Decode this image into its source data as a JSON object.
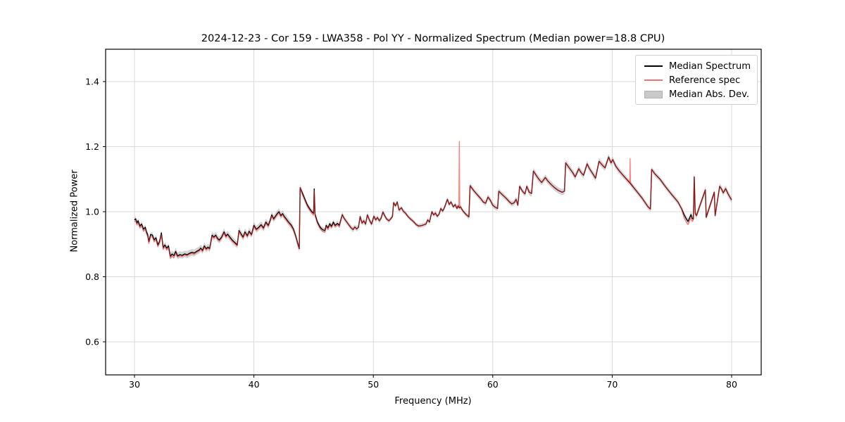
{
  "chart_data": {
    "type": "line",
    "title": "2024-12-23 - Cor 159 - LWA358 - Pol YY - Normalized Spectrum (Median power=18.8 CPU)",
    "xlabel": "Frequency (MHz)",
    "ylabel": "Normalized Power",
    "xlim": [
      27.6,
      82.5
    ],
    "ylim": [
      0.5,
      1.5
    ],
    "x_ticks": [
      30,
      40,
      50,
      60,
      70,
      80
    ],
    "x_tick_labels": [
      "30",
      "40",
      "50",
      "60",
      "70",
      "80"
    ],
    "y_ticks": [
      0.6,
      0.8,
      1.0,
      1.2,
      1.4
    ],
    "y_tick_labels": [
      "0.6",
      "0.8",
      "1.0",
      "1.2",
      "1.4"
    ],
    "grid": true,
    "legend_position": "upper right",
    "legend": [
      {
        "label": "Median Spectrum",
        "swatch": "line",
        "color": "#000000"
      },
      {
        "label": "Reference spec",
        "swatch": "line",
        "color": "#f37070"
      },
      {
        "label": "Median Abs. Dev.",
        "swatch": "patch",
        "color": "#c9c9c9"
      }
    ],
    "series": [
      {
        "name": "Median Spectrum",
        "type": "line",
        "color": "#000000",
        "points": [
          [
            30.0,
            0.975
          ],
          [
            30.1,
            0.978
          ],
          [
            30.2,
            0.965
          ],
          [
            30.3,
            0.972
          ],
          [
            30.45,
            0.956
          ],
          [
            30.6,
            0.962
          ],
          [
            30.75,
            0.946
          ],
          [
            30.9,
            0.952
          ],
          [
            31.0,
            0.938
          ],
          [
            31.1,
            0.93
          ],
          [
            31.2,
            0.908
          ],
          [
            31.35,
            0.93
          ],
          [
            31.5,
            0.928
          ],
          [
            31.65,
            0.913
          ],
          [
            31.8,
            0.92
          ],
          [
            31.95,
            0.898
          ],
          [
            32.1,
            0.908
          ],
          [
            32.25,
            0.935
          ],
          [
            32.4,
            0.89
          ],
          [
            32.55,
            0.898
          ],
          [
            32.7,
            0.888
          ],
          [
            32.85,
            0.895
          ],
          [
            33.0,
            0.863
          ],
          [
            33.15,
            0.87
          ],
          [
            33.3,
            0.865
          ],
          [
            33.45,
            0.878
          ],
          [
            33.6,
            0.864
          ],
          [
            33.8,
            0.868
          ],
          [
            34.0,
            0.866
          ],
          [
            34.2,
            0.87
          ],
          [
            34.4,
            0.868
          ],
          [
            34.6,
            0.872
          ],
          [
            34.8,
            0.875
          ],
          [
            35.0,
            0.873
          ],
          [
            35.2,
            0.878
          ],
          [
            35.4,
            0.882
          ],
          [
            35.55,
            0.888
          ],
          [
            35.7,
            0.881
          ],
          [
            35.85,
            0.895
          ],
          [
            36.0,
            0.886
          ],
          [
            36.15,
            0.891
          ],
          [
            36.3,
            0.887
          ],
          [
            36.5,
            0.928
          ],
          [
            36.65,
            0.922
          ],
          [
            36.8,
            0.928
          ],
          [
            36.95,
            0.918
          ],
          [
            37.1,
            0.913
          ],
          [
            37.3,
            0.922
          ],
          [
            37.5,
            0.938
          ],
          [
            37.65,
            0.925
          ],
          [
            37.8,
            0.931
          ],
          [
            38.0,
            0.921
          ],
          [
            38.2,
            0.912
          ],
          [
            38.4,
            0.905
          ],
          [
            38.6,
            0.898
          ],
          [
            38.75,
            0.942
          ],
          [
            38.95,
            0.93
          ],
          [
            39.1,
            0.922
          ],
          [
            39.25,
            0.938
          ],
          [
            39.45,
            0.926
          ],
          [
            39.6,
            0.94
          ],
          [
            39.8,
            0.93
          ],
          [
            40.0,
            0.958
          ],
          [
            40.2,
            0.946
          ],
          [
            40.4,
            0.952
          ],
          [
            40.6,
            0.96
          ],
          [
            40.8,
            0.95
          ],
          [
            41.0,
            0.968
          ],
          [
            41.2,
            0.958
          ],
          [
            41.35,
            0.972
          ],
          [
            41.5,
            0.99
          ],
          [
            41.65,
            0.978
          ],
          [
            41.8,
            0.986
          ],
          [
            41.95,
            0.994
          ],
          [
            42.1,
            1.0
          ],
          [
            42.25,
            0.988
          ],
          [
            42.4,
            0.994
          ],
          [
            42.55,
            0.985
          ],
          [
            42.7,
            0.978
          ],
          [
            42.9,
            0.968
          ],
          [
            43.1,
            0.96
          ],
          [
            43.3,
            0.947
          ],
          [
            43.5,
            0.925
          ],
          [
            43.65,
            0.905
          ],
          [
            43.8,
            0.886
          ],
          [
            43.87,
            1.074
          ],
          [
            44.05,
            1.058
          ],
          [
            44.25,
            1.04
          ],
          [
            44.45,
            1.022
          ],
          [
            44.65,
            1.01
          ],
          [
            44.85,
            1.0
          ],
          [
            45.0,
            0.995
          ],
          [
            45.05,
            1.07
          ],
          [
            45.12,
            0.992
          ],
          [
            45.3,
            0.97
          ],
          [
            45.5,
            0.955
          ],
          [
            45.65,
            0.948
          ],
          [
            45.8,
            0.944
          ],
          [
            45.95,
            0.942
          ],
          [
            46.05,
            0.958
          ],
          [
            46.2,
            0.95
          ],
          [
            46.35,
            0.963
          ],
          [
            46.5,
            0.955
          ],
          [
            46.65,
            0.968
          ],
          [
            46.8,
            0.958
          ],
          [
            47.0,
            0.964
          ],
          [
            47.15,
            0.958
          ],
          [
            47.4,
            0.991
          ],
          [
            47.55,
            0.98
          ],
          [
            47.7,
            0.972
          ],
          [
            47.9,
            0.962
          ],
          [
            48.1,
            0.952
          ],
          [
            48.3,
            0.945
          ],
          [
            48.45,
            0.953
          ],
          [
            48.6,
            0.947
          ],
          [
            48.75,
            0.952
          ],
          [
            48.9,
            0.985
          ],
          [
            49.05,
            0.965
          ],
          [
            49.2,
            0.972
          ],
          [
            49.35,
            0.962
          ],
          [
            49.5,
            0.99
          ],
          [
            49.7,
            0.972
          ],
          [
            49.85,
            0.962
          ],
          [
            50.05,
            0.986
          ],
          [
            50.2,
            0.975
          ],
          [
            50.35,
            0.982
          ],
          [
            50.5,
            0.972
          ],
          [
            50.65,
            0.98
          ],
          [
            50.8,
            0.999
          ],
          [
            50.95,
            0.988
          ],
          [
            51.1,
            0.978
          ],
          [
            51.3,
            0.972
          ],
          [
            51.45,
            0.978
          ],
          [
            51.6,
            0.985
          ],
          [
            51.7,
            1.028
          ],
          [
            51.85,
            1.018
          ],
          [
            52.0,
            1.03
          ],
          [
            52.15,
            1.005
          ],
          [
            52.35,
            1.012
          ],
          [
            52.5,
            1.002
          ],
          [
            52.7,
            0.995
          ],
          [
            52.9,
            0.985
          ],
          [
            53.1,
            0.978
          ],
          [
            53.35,
            0.97
          ],
          [
            53.6,
            0.96
          ],
          [
            53.8,
            0.956
          ],
          [
            54.1,
            0.958
          ],
          [
            54.4,
            0.962
          ],
          [
            54.55,
            0.975
          ],
          [
            54.7,
            0.968
          ],
          [
            54.9,
            1.0
          ],
          [
            55.05,
            0.99
          ],
          [
            55.2,
            0.996
          ],
          [
            55.35,
            0.986
          ],
          [
            55.5,
            0.992
          ],
          [
            55.65,
            1.01
          ],
          [
            55.8,
            1.002
          ],
          [
            55.95,
            1.012
          ],
          [
            56.2,
            1.038
          ],
          [
            56.35,
            1.022
          ],
          [
            56.5,
            1.03
          ],
          [
            56.7,
            1.015
          ],
          [
            56.85,
            1.022
          ],
          [
            57.0,
            1.01
          ],
          [
            57.1,
            1.018
          ],
          [
            57.2,
            1.012
          ],
          [
            57.3,
            1.015
          ],
          [
            57.45,
            1.005
          ],
          [
            57.6,
            0.998
          ],
          [
            57.8,
            0.99
          ],
          [
            58.0,
            0.984
          ],
          [
            58.1,
            1.08
          ],
          [
            58.4,
            1.065
          ],
          [
            58.7,
            1.052
          ],
          [
            59.0,
            1.04
          ],
          [
            59.2,
            1.03
          ],
          [
            59.4,
            1.026
          ],
          [
            59.6,
            1.045
          ],
          [
            59.8,
            1.035
          ],
          [
            60.0,
            1.02
          ],
          [
            60.2,
            1.014
          ],
          [
            60.4,
            1.01
          ],
          [
            60.5,
            1.063
          ],
          [
            60.8,
            1.052
          ],
          [
            61.1,
            1.042
          ],
          [
            61.4,
            1.03
          ],
          [
            61.6,
            1.024
          ],
          [
            61.8,
            1.028
          ],
          [
            61.95,
            1.038
          ],
          [
            62.1,
            1.02
          ],
          [
            62.25,
            1.078
          ],
          [
            62.5,
            1.062
          ],
          [
            62.7,
            1.055
          ],
          [
            62.85,
            1.078
          ],
          [
            63.05,
            1.06
          ],
          [
            63.25,
            1.056
          ],
          [
            63.4,
            1.125
          ],
          [
            63.7,
            1.108
          ],
          [
            63.9,
            1.098
          ],
          [
            64.1,
            1.09
          ],
          [
            64.4,
            1.105
          ],
          [
            64.6,
            1.095
          ],
          [
            64.9,
            1.083
          ],
          [
            65.2,
            1.073
          ],
          [
            65.5,
            1.065
          ],
          [
            65.8,
            1.06
          ],
          [
            66.0,
            1.063
          ],
          [
            66.1,
            1.15
          ],
          [
            66.4,
            1.135
          ],
          [
            66.7,
            1.12
          ],
          [
            66.9,
            1.107
          ],
          [
            67.2,
            1.132
          ],
          [
            67.4,
            1.12
          ],
          [
            67.6,
            1.112
          ],
          [
            67.9,
            1.147
          ],
          [
            68.1,
            1.132
          ],
          [
            68.4,
            1.115
          ],
          [
            68.6,
            1.103
          ],
          [
            68.9,
            1.155
          ],
          [
            69.2,
            1.142
          ],
          [
            69.4,
            1.135
          ],
          [
            69.7,
            1.168
          ],
          [
            69.9,
            1.15
          ],
          [
            70.05,
            1.16
          ],
          [
            70.3,
            1.14
          ],
          [
            70.6,
            1.125
          ],
          [
            71.0,
            1.108
          ],
          [
            71.5,
            1.088
          ],
          [
            72.0,
            1.065
          ],
          [
            72.5,
            1.042
          ],
          [
            73.0,
            1.015
          ],
          [
            73.2,
            1.008
          ],
          [
            73.3,
            1.13
          ],
          [
            73.6,
            1.115
          ],
          [
            74.0,
            1.1
          ],
          [
            74.5,
            1.075
          ],
          [
            75.0,
            1.052
          ],
          [
            75.5,
            1.03
          ],
          [
            75.8,
            1.01
          ],
          [
            76.0,
            0.992
          ],
          [
            76.2,
            0.978
          ],
          [
            76.35,
            0.97
          ],
          [
            76.5,
            0.982
          ],
          [
            76.6,
            0.991
          ],
          [
            76.7,
            0.98
          ],
          [
            76.8,
            0.977
          ],
          [
            76.87,
            1.107
          ],
          [
            76.95,
            0.995
          ],
          [
            77.05,
            0.988
          ],
          [
            77.8,
            1.067
          ],
          [
            77.87,
            0.983
          ],
          [
            78.55,
            1.06
          ],
          [
            78.62,
            0.988
          ],
          [
            79.0,
            1.078
          ],
          [
            79.15,
            1.07
          ],
          [
            79.3,
            1.058
          ],
          [
            79.5,
            1.071
          ],
          [
            79.7,
            1.055
          ],
          [
            79.85,
            1.045
          ],
          [
            80.0,
            1.036
          ]
        ]
      },
      {
        "name": "Reference spec",
        "type": "line",
        "color": "#f25c5c",
        "derived_from": "Median Spectrum",
        "offset_regions": [
          [
            30.0,
            33.6,
            -0.006
          ],
          [
            33.6,
            43.8,
            -0.0035
          ],
          [
            43.9,
            47.2,
            -0.005
          ],
          [
            75.9,
            76.72,
            -0.01
          ]
        ],
        "spikes": [
          [
            57.2,
            1.216
          ],
          [
            71.5,
            1.163
          ]
        ]
      },
      {
        "name": "Median Abs. Dev.",
        "type": "band",
        "color": "#c9c9c9",
        "around": "Median Spectrum",
        "halfwidth_regions": [
          [
            27.6,
            0.008
          ],
          [
            33.0,
            0.0105
          ],
          [
            43.9,
            0.008
          ],
          [
            51.0,
            0.0065
          ],
          [
            58.0,
            0.008
          ],
          [
            63.0,
            0.0095
          ],
          [
            71.0,
            0.008
          ],
          [
            76.0,
            0.0095
          ]
        ]
      }
    ]
  }
}
